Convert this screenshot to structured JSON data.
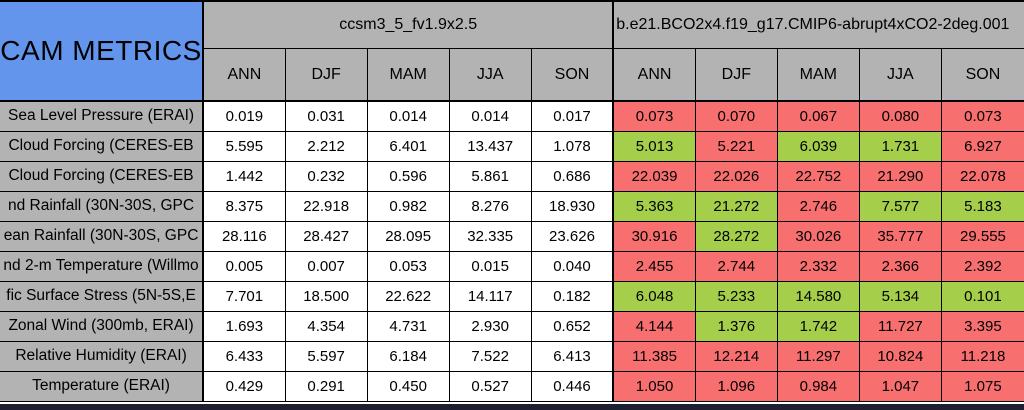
{
  "colors": {
    "header_blue": "#6495EC",
    "header_gray": "#B3B3B3",
    "cell_red": "#F76F6F",
    "cell_green": "#A5CE4B",
    "bottom_strip": "#1D2030"
  },
  "chart_data": {
    "type": "table",
    "corner_title": "CAM METRICS",
    "column_groups": [
      {
        "title": "ccsm3_5_fv1.9x2.5",
        "columns": [
          "ANN",
          "DJF",
          "MAM",
          "JJA",
          "SON"
        ]
      },
      {
        "title": "b.e21.BCO2x4.f19_g17.CMIP6-abrupt4xCO2-2deg.001",
        "columns": [
          "ANN",
          "DJF",
          "MAM",
          "JJA",
          "SON"
        ]
      }
    ],
    "rows": [
      {
        "label": "Sea Level Pressure (ERAI)",
        "group1": [
          "0.019",
          "0.031",
          "0.014",
          "0.014",
          "0.017"
        ],
        "group2": [
          "0.073",
          "0.070",
          "0.067",
          "0.080",
          "0.073"
        ],
        "group2_status": [
          "red",
          "red",
          "red",
          "red",
          "red"
        ]
      },
      {
        "label": "Cloud Forcing (CERES-EB",
        "group1": [
          "5.595",
          "2.212",
          "6.401",
          "13.437",
          "1.078"
        ],
        "group2": [
          "5.013",
          "5.221",
          "6.039",
          "1.731",
          "6.927"
        ],
        "group2_status": [
          "green",
          "red",
          "green",
          "green",
          "red"
        ]
      },
      {
        "label": "Cloud Forcing (CERES-EB",
        "group1": [
          "1.442",
          "0.232",
          "0.596",
          "5.861",
          "0.686"
        ],
        "group2": [
          "22.039",
          "22.026",
          "22.752",
          "21.290",
          "22.078"
        ],
        "group2_status": [
          "red",
          "red",
          "red",
          "red",
          "red"
        ]
      },
      {
        "label": "nd Rainfall (30N-30S, GPC",
        "group1": [
          "8.375",
          "22.918",
          "0.982",
          "8.276",
          "18.930"
        ],
        "group2": [
          "5.363",
          "21.272",
          "2.746",
          "7.577",
          "5.183"
        ],
        "group2_status": [
          "green",
          "green",
          "red",
          "green",
          "green"
        ]
      },
      {
        "label": "ean Rainfall (30N-30S, GPC",
        "group1": [
          "28.116",
          "28.427",
          "28.095",
          "32.335",
          "23.626"
        ],
        "group2": [
          "30.916",
          "28.272",
          "30.026",
          "35.777",
          "29.555"
        ],
        "group2_status": [
          "red",
          "green",
          "red",
          "red",
          "red"
        ]
      },
      {
        "label": "nd 2-m Temperature (Willmo",
        "group1": [
          "0.005",
          "0.007",
          "0.053",
          "0.015",
          "0.040"
        ],
        "group2": [
          "2.455",
          "2.744",
          "2.332",
          "2.366",
          "2.392"
        ],
        "group2_status": [
          "red",
          "red",
          "red",
          "red",
          "red"
        ]
      },
      {
        "label": "fic Surface Stress (5N-5S,E",
        "group1": [
          "7.701",
          "18.500",
          "22.622",
          "14.117",
          "0.182"
        ],
        "group2": [
          "6.048",
          "5.233",
          "14.580",
          "5.134",
          "0.101"
        ],
        "group2_status": [
          "green",
          "green",
          "green",
          "green",
          "green"
        ]
      },
      {
        "label": "Zonal Wind (300mb, ERAI)",
        "group1": [
          "1.693",
          "4.354",
          "4.731",
          "2.930",
          "0.652"
        ],
        "group2": [
          "4.144",
          "1.376",
          "1.742",
          "11.727",
          "3.395"
        ],
        "group2_status": [
          "red",
          "green",
          "green",
          "red",
          "red"
        ]
      },
      {
        "label": "Relative Humidity (ERAI)",
        "group1": [
          "6.433",
          "5.597",
          "6.184",
          "7.522",
          "6.413"
        ],
        "group2": [
          "11.385",
          "12.214",
          "11.297",
          "10.824",
          "11.218"
        ],
        "group2_status": [
          "red",
          "red",
          "red",
          "red",
          "red"
        ]
      },
      {
        "label": "Temperature (ERAI)",
        "group1": [
          "0.429",
          "0.291",
          "0.450",
          "0.527",
          "0.446"
        ],
        "group2": [
          "1.050",
          "1.096",
          "0.984",
          "1.047",
          "1.075"
        ],
        "group2_status": [
          "red",
          "red",
          "red",
          "red",
          "red"
        ]
      }
    ]
  }
}
